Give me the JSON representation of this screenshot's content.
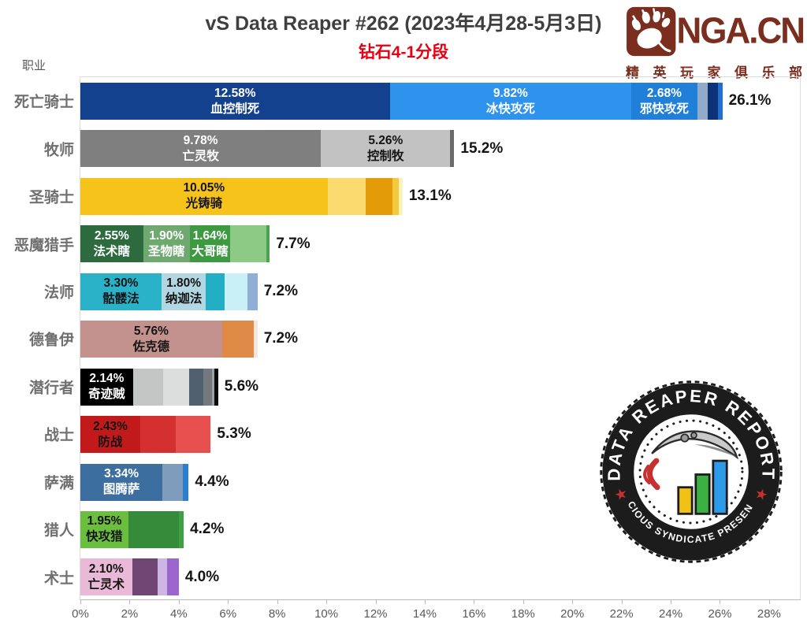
{
  "header": {
    "title": "vS Data Reaper #262 (2023年4月28-5月3日)",
    "subtitle": "钻石4-1分段",
    "subtitle_color": "#E60012",
    "title_color": "#3F3F3F"
  },
  "nga_logo": {
    "name": "NGA.CN",
    "tagline": "精英玩家俱乐部",
    "color": "#7B2D1E",
    "icon": "bear-paw"
  },
  "stamp": {
    "top_text": "DATA REAPER REPORT",
    "bottom_text": "VICIOUS SYNDICATE PRESENTS",
    "badge_color": "#1C1C1C",
    "star_color": "#C53030",
    "bar_colors": [
      "#F2C117",
      "#3CB043",
      "#2D9BE8"
    ]
  },
  "chart_data": {
    "type": "bar",
    "orientation": "horizontal-stacked",
    "y_axis_title": "职业",
    "axis_max_pct": 28,
    "x_ticks": [
      "0%",
      "2%",
      "4%",
      "6%",
      "8%",
      "10%",
      "12%",
      "14%",
      "16%",
      "18%",
      "20%",
      "22%",
      "24%",
      "26%",
      "28%"
    ],
    "grid": false,
    "classes": [
      {
        "name": "死亡骑士",
        "total": "26.1%",
        "total_pct": 26.1,
        "segments": [
          {
            "value": "12.58%",
            "label": "血控制死",
            "pct": 12.58,
            "color": "#14418E",
            "text_color": "#FFFFFF"
          },
          {
            "value": "9.82%",
            "label": "冰快攻死",
            "pct": 9.82,
            "color": "#2E93EC",
            "text_color": "#FFFFFF"
          },
          {
            "value": "2.68%",
            "label": "邪快攻死",
            "pct": 2.68,
            "color": "#1F7FD9",
            "text_color": "#FFFFFF"
          },
          {
            "pct": 0.42,
            "color": "#92ABC9"
          },
          {
            "pct": 0.42,
            "color": "#0E3277"
          },
          {
            "pct": 0.18,
            "color": "#1E6FD0"
          }
        ]
      },
      {
        "name": "牧师",
        "total": "15.2%",
        "total_pct": 15.2,
        "segments": [
          {
            "value": "9.78%",
            "label": "亡灵牧",
            "pct": 9.78,
            "color": "#7F7F7F",
            "text_color": "#FFFFFF"
          },
          {
            "value": "5.26%",
            "label": "控制牧",
            "pct": 5.26,
            "color": "#C2C2C2",
            "text_color": "#141414"
          },
          {
            "pct": 0.16,
            "color": "#6B6B6B"
          }
        ]
      },
      {
        "name": "圣骑士",
        "total": "13.1%",
        "total_pct": 13.1,
        "segments": [
          {
            "value": "10.05%",
            "label": "光铸骑",
            "pct": 10.05,
            "color": "#F6C31A",
            "text_color": "#141414"
          },
          {
            "pct": 1.55,
            "color": "#FBDA6F"
          },
          {
            "pct": 1.1,
            "color": "#E39B07"
          },
          {
            "pct": 0.25,
            "color": "#F4C841"
          },
          {
            "pct": 0.15,
            "color": "#FCF3BB"
          }
        ]
      },
      {
        "name": "恶魔猎手",
        "total": "7.7%",
        "total_pct": 7.7,
        "segments": [
          {
            "value": "2.55%",
            "label": "法术瞎",
            "pct": 2.55,
            "color": "#2D6B3F",
            "text_color": "#FFFFFF"
          },
          {
            "value": "1.90%",
            "label": "圣物瞎",
            "pct": 1.9,
            "color": "#6FA96F",
            "text_color": "#FFFFFF"
          },
          {
            "value": "1.64%",
            "label": "大哥瞎",
            "pct": 1.64,
            "color": "#3E9943",
            "text_color": "#FFFFFF"
          },
          {
            "pct": 1.46,
            "color": "#8CCA86"
          },
          {
            "pct": 0.15,
            "color": "#4CA34F"
          }
        ]
      },
      {
        "name": "法师",
        "total": "7.2%",
        "total_pct": 7.2,
        "segments": [
          {
            "value": "3.30%",
            "label": "骷髅法",
            "pct": 3.3,
            "color": "#29B2C8",
            "text_color": "#141414"
          },
          {
            "value": "1.80%",
            "label": "纳迦法",
            "pct": 1.8,
            "color": "#B3D6E3",
            "text_color": "#141414"
          },
          {
            "pct": 0.75,
            "color": "#22AEC4"
          },
          {
            "pct": 0.95,
            "color": "#C9F0F7"
          },
          {
            "pct": 0.4,
            "color": "#8FAFD6"
          }
        ]
      },
      {
        "name": "德鲁伊",
        "total": "7.2%",
        "total_pct": 7.2,
        "segments": [
          {
            "value": "5.76%",
            "label": "佐克德",
            "pct": 5.76,
            "color": "#C4928E",
            "text_color": "#141414"
          },
          {
            "pct": 1.3,
            "color": "#E08A47"
          },
          {
            "pct": 0.14,
            "color": "#F3E6DC"
          }
        ]
      },
      {
        "name": "潜行者",
        "total": "5.6%",
        "total_pct": 5.6,
        "segments": [
          {
            "value": "2.14%",
            "label": "奇迹贼",
            "pct": 2.14,
            "color": "#000000",
            "text_color": "#FFFFFF"
          },
          {
            "pct": 1.22,
            "color": "#C3C6C5"
          },
          {
            "pct": 1.05,
            "color": "#DCDEDD"
          },
          {
            "pct": 0.6,
            "color": "#51606F"
          },
          {
            "pct": 0.33,
            "color": "#75797D"
          },
          {
            "pct": 0.1,
            "color": "#9EA2A5"
          },
          {
            "pct": 0.16,
            "color": "#0A0A0A"
          }
        ]
      },
      {
        "name": "战士",
        "total": "5.3%",
        "total_pct": 5.3,
        "segments": [
          {
            "value": "2.43%",
            "label": "防战",
            "pct": 2.43,
            "color": "#C21A1A",
            "text_color": "#141414"
          },
          {
            "pct": 1.45,
            "color": "#D43030"
          },
          {
            "pct": 1.42,
            "color": "#E85050"
          }
        ]
      },
      {
        "name": "萨满",
        "total": "4.4%",
        "total_pct": 4.4,
        "segments": [
          {
            "value": "3.34%",
            "label": "图腾萨",
            "pct": 3.34,
            "color": "#3C6F9F",
            "text_color": "#FFFFFF"
          },
          {
            "pct": 0.81,
            "color": "#7E9DBC"
          },
          {
            "pct": 0.25,
            "color": "#2B7FD0"
          }
        ]
      },
      {
        "name": "猎人",
        "total": "4.2%",
        "total_pct": 4.2,
        "segments": [
          {
            "value": "1.95%",
            "label": "快攻猎",
            "pct": 1.95,
            "color": "#6CBE3F",
            "text_color": "#141414"
          },
          {
            "pct": 2.05,
            "color": "#358B39"
          },
          {
            "pct": 0.2,
            "color": "#3F9F44"
          }
        ]
      },
      {
        "name": "术士",
        "total": "4.0%",
        "total_pct": 4.0,
        "segments": [
          {
            "value": "2.10%",
            "label": "亡灵术",
            "pct": 2.1,
            "color": "#EAB9D8",
            "text_color": "#141414"
          },
          {
            "pct": 1.05,
            "color": "#6F4573"
          },
          {
            "pct": 0.37,
            "color": "#CDB6E3"
          },
          {
            "pct": 0.48,
            "color": "#9B67CF"
          }
        ]
      }
    ]
  }
}
